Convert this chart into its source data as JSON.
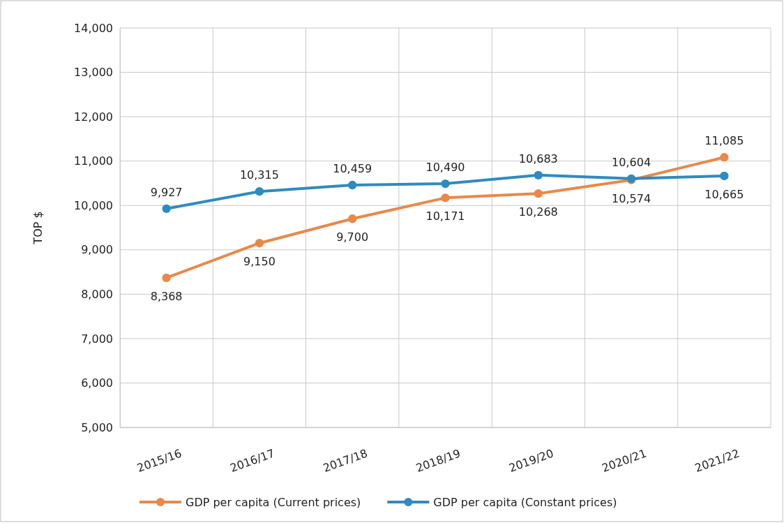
{
  "chart_data": {
    "type": "line",
    "ylabel": "TOP $",
    "categories": [
      "2015/16",
      "2016/17",
      "2017/18",
      "2018/19",
      "2019/20",
      "2020/21",
      "2021/22"
    ],
    "series": [
      {
        "name": "GDP per capita (Current prices)",
        "color": "#e8894a",
        "values": [
          8368,
          9150,
          9700,
          10171,
          10268,
          10574,
          11085
        ],
        "value_labels": [
          "8,368",
          "9,150",
          "9,700",
          "10,171",
          "10,268",
          "10,574",
          "11,085"
        ]
      },
      {
        "name": "GDP per capita (Constant prices)",
        "color": "#2e8bc0",
        "values": [
          9927,
          10315,
          10459,
          10490,
          10683,
          10604,
          10665
        ],
        "value_labels": [
          "9,927",
          "10,315",
          "10,459",
          "10,490",
          "10,683",
          "10,604",
          "10,665"
        ]
      }
    ],
    "ylim": [
      5000,
      14000
    ],
    "yticks": [
      {
        "value": 5000,
        "label": "5,000"
      },
      {
        "value": 6000,
        "label": "6,000"
      },
      {
        "value": 7000,
        "label": "7,000"
      },
      {
        "value": 8000,
        "label": "8,000"
      },
      {
        "value": 9000,
        "label": "9,000"
      },
      {
        "value": 10000,
        "label": "10,000"
      },
      {
        "value": 11000,
        "label": "11,000"
      },
      {
        "value": 12000,
        "label": "12,000"
      },
      {
        "value": 13000,
        "label": "13,000"
      },
      {
        "value": 14000,
        "label": "14,000"
      }
    ],
    "grid": true,
    "legend": "bottom",
    "marker": "circle",
    "line_style": "solid"
  }
}
